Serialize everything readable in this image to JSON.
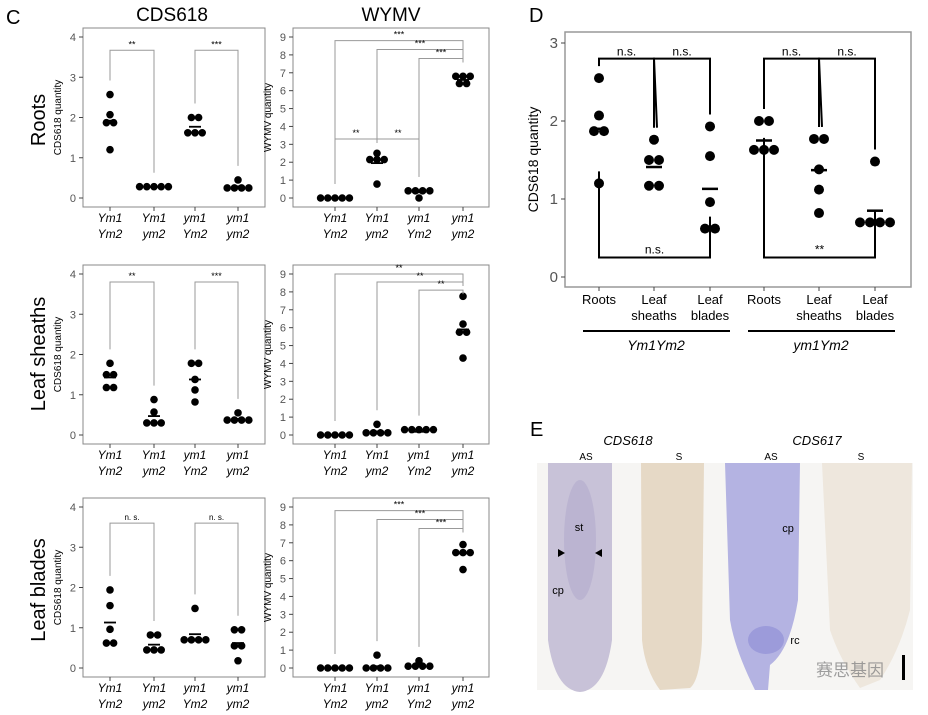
{
  "panel_c": {
    "letter": "C",
    "columns": [
      "CDS618",
      "WYMV"
    ],
    "rows": [
      "Roots",
      "Leaf sheaths",
      "Leaf blades"
    ]
  },
  "panel_d": {
    "letter": "D",
    "groups": [
      "Ym1Ym2",
      "ym1Ym2"
    ]
  },
  "panel_e": {
    "letter": "E",
    "genes": [
      "CDS618",
      "CDS617"
    ],
    "probes": [
      "AS",
      "S",
      "AS",
      "S"
    ],
    "annotations": {
      "st": "st",
      "cp1": "cp",
      "cp2": "cp",
      "rc": "rc"
    },
    "watermark": "赛思基因",
    "colors": {
      "cds618_as": "#c8c2d8",
      "cds618_s": "#e6d9c6",
      "cds617_as": "#b4b3e2",
      "cds617_s": "#eee7dd"
    }
  },
  "chart_data": [
    {
      "type": "scatter",
      "panel": "C",
      "row": "Roots",
      "column": "CDS618",
      "ylabel": "CDS618 quantity",
      "ylim": [
        0,
        4
      ],
      "yticks": [
        0,
        1,
        2,
        3,
        4
      ],
      "categories": [
        "Ym1 Ym2",
        "Ym1 ym2",
        "ym1 Ym2",
        "ym1 ym2"
      ],
      "groups": [
        {
          "points": [
            2.57,
            2.07,
            1.87,
            1.87,
            1.2
          ],
          "mean": 1.92
        },
        {
          "points": [
            0.28,
            0.28,
            0.28,
            0.28,
            0.28
          ],
          "mean": 0.28
        },
        {
          "points": [
            2.0,
            2.0,
            1.62,
            1.62,
            1.62
          ],
          "mean": 1.77
        },
        {
          "points": [
            0.45,
            0.25,
            0.25,
            0.25,
            0.25
          ],
          "mean": 0.29
        }
      ],
      "brackets": [
        {
          "from": 0,
          "to": 1,
          "y": 3.67,
          "label": "**"
        },
        {
          "from": 2,
          "to": 3,
          "y": 3.67,
          "label": "***"
        }
      ]
    },
    {
      "type": "scatter",
      "panel": "C",
      "row": "Roots",
      "column": "WYMV",
      "ylabel": "WYMV quantity",
      "ylim": [
        0,
        9
      ],
      "yticks": [
        0,
        1,
        2,
        3,
        4,
        5,
        6,
        7,
        8,
        9
      ],
      "categories": [
        "Ym1 Ym2",
        "Ym1 ym2",
        "ym1 Ym2",
        "ym1 ym2"
      ],
      "groups": [
        {
          "points": [
            0,
            0,
            0,
            0,
            0
          ],
          "mean": 0
        },
        {
          "points": [
            2.5,
            2.15,
            2.15,
            2.15,
            0.78
          ],
          "mean": 1.95
        },
        {
          "points": [
            0.4,
            0.4,
            0.4,
            0.4,
            0
          ],
          "mean": 0.32
        },
        {
          "points": [
            6.8,
            6.8,
            6.8,
            6.4,
            6.4
          ],
          "mean": 6.6
        }
      ],
      "brackets": [
        {
          "from": 0,
          "to": 3,
          "y": 8.8,
          "label": "***"
        },
        {
          "from": 1,
          "to": 3,
          "y": 8.3,
          "label": "***"
        },
        {
          "from": 2,
          "to": 3,
          "y": 7.8,
          "label": "***"
        },
        {
          "from": 0,
          "to": 1,
          "y": 3.3,
          "label": "**"
        },
        {
          "from": 1,
          "to": 2,
          "y": 3.3,
          "label": "**"
        }
      ]
    },
    {
      "type": "scatter",
      "panel": "C",
      "row": "Leaf sheaths",
      "column": "CDS618",
      "ylabel": "CDS618 quantity",
      "ylim": [
        0,
        4
      ],
      "yticks": [
        0,
        1,
        2,
        3,
        4
      ],
      "categories": [
        "Ym1 Ym2",
        "Ym1 ym2",
        "ym1 Ym2",
        "ym1 ym2"
      ],
      "groups": [
        {
          "points": [
            1.78,
            1.5,
            1.5,
            1.18,
            1.18
          ],
          "mean": 1.43
        },
        {
          "points": [
            0.88,
            0.57,
            0.3,
            0.3,
            0.3
          ],
          "mean": 0.47
        },
        {
          "points": [
            1.78,
            1.78,
            1.38,
            1.12,
            0.82
          ],
          "mean": 1.38
        },
        {
          "points": [
            0.55,
            0.37,
            0.37,
            0.37,
            0.37
          ],
          "mean": 0.4
        }
      ],
      "brackets": [
        {
          "from": 0,
          "to": 1,
          "y": 3.8,
          "label": "**"
        },
        {
          "from": 2,
          "to": 3,
          "y": 3.8,
          "label": "***"
        }
      ]
    },
    {
      "type": "scatter",
      "panel": "C",
      "row": "Leaf sheaths",
      "column": "WYMV",
      "ylabel": "WYMV quantity",
      "ylim": [
        0,
        9
      ],
      "yticks": [
        0,
        1,
        2,
        3,
        4,
        5,
        6,
        7,
        8,
        9
      ],
      "categories": [
        "Ym1 Ym2",
        "Ym1 ym2",
        "ym1 Ym2",
        "ym1 ym2"
      ],
      "groups": [
        {
          "points": [
            0,
            0,
            0,
            0,
            0
          ],
          "mean": 0
        },
        {
          "points": [
            0.6,
            0.12,
            0.12,
            0.12,
            0.12
          ],
          "mean": 0.2
        },
        {
          "points": [
            0.3,
            0.3,
            0.1,
            0.1,
            0.1
          ],
          "mean": 0.18
        },
        {
          "points": [
            7.75,
            6.2,
            5.75,
            5.75,
            4.3
          ],
          "mean": 5.9
        }
      ],
      "brackets": [
        {
          "from": 0,
          "to": 3,
          "y": 9.0,
          "label": "**"
        },
        {
          "from": 1,
          "to": 3,
          "y": 8.55,
          "label": "**"
        },
        {
          "from": 2,
          "to": 3,
          "y": 8.1,
          "label": "**"
        }
      ]
    },
    {
      "type": "scatter",
      "panel": "C",
      "row": "Leaf blades",
      "column": "CDS618",
      "ylabel": "CDS618 quantity",
      "ylim": [
        0,
        4
      ],
      "yticks": [
        0,
        1,
        2,
        3,
        4
      ],
      "categories": [
        "Ym1 Ym2",
        "Ym1 ym2",
        "ym1 Ym2",
        "ym1 ym2"
      ],
      "groups": [
        {
          "points": [
            1.94,
            1.55,
            0.96,
            0.62,
            0.62
          ],
          "mean": 1.13
        },
        {
          "points": [
            0.82,
            0.82,
            0.45,
            0.45,
            0.45
          ],
          "mean": 0.58
        },
        {
          "points": [
            1.48,
            0.7,
            0.7,
            0.7,
            0.7
          ],
          "mean": 0.84
        },
        {
          "points": [
            0.95,
            0.95,
            0.55,
            0.55,
            0.18
          ],
          "mean": 0.62
        }
      ],
      "brackets": [
        {
          "from": 0,
          "to": 1,
          "y": 3.6,
          "label": "n. s."
        },
        {
          "from": 2,
          "to": 3,
          "y": 3.6,
          "label": "n. s."
        }
      ]
    },
    {
      "type": "scatter",
      "panel": "C",
      "row": "Leaf blades",
      "column": "WYMV",
      "ylabel": "WYMV quantity",
      "ylim": [
        0,
        9
      ],
      "yticks": [
        0,
        1,
        2,
        3,
        4,
        5,
        6,
        7,
        8,
        9
      ],
      "categories": [
        "Ym1 Ym2",
        "Ym1 ym2",
        "ym1 Ym2",
        "ym1 ym2"
      ],
      "groups": [
        {
          "points": [
            0,
            0,
            0,
            0,
            0
          ],
          "mean": 0
        },
        {
          "points": [
            0.72,
            0,
            0,
            0,
            0
          ],
          "mean": 0.1
        },
        {
          "points": [
            0.4,
            0.1,
            0.1,
            0.1,
            0.1
          ],
          "mean": 0.15
        },
        {
          "points": [
            6.9,
            6.45,
            6.45,
            6.45,
            5.5
          ],
          "mean": 6.4
        }
      ],
      "brackets": [
        {
          "from": 0,
          "to": 3,
          "y": 8.8,
          "label": "***"
        },
        {
          "from": 1,
          "to": 3,
          "y": 8.3,
          "label": "***"
        },
        {
          "from": 2,
          "to": 3,
          "y": 7.8,
          "label": "***"
        }
      ]
    },
    {
      "type": "scatter",
      "panel": "D",
      "ylabel": "CDS618 quantity",
      "ylim": [
        0,
        3
      ],
      "yticks": [
        0,
        1,
        2,
        3
      ],
      "categories": [
        "Roots",
        "Leaf sheaths",
        "Leaf blades",
        "Roots",
        "Leaf sheaths",
        "Leaf blades"
      ],
      "groups": [
        {
          "points": [
            2.55,
            2.07,
            1.87,
            1.87,
            1.2
          ],
          "mean": 1.9
        },
        {
          "points": [
            1.76,
            1.5,
            1.5,
            1.17,
            1.17
          ],
          "mean": 1.41
        },
        {
          "points": [
            1.93,
            1.55,
            0.96,
            0.62,
            0.62
          ],
          "mean": 1.13
        },
        {
          "points": [
            2.0,
            2.0,
            1.63,
            1.63,
            1.63
          ],
          "mean": 1.75
        },
        {
          "points": [
            1.77,
            1.77,
            1.38,
            1.12,
            0.82
          ],
          "mean": 1.37
        },
        {
          "points": [
            1.48,
            0.7,
            0.7,
            0.7,
            0.7
          ],
          "mean": 0.85
        }
      ],
      "brackets": [
        {
          "from": 0,
          "to": 1,
          "y": 2.8,
          "label": "n.s."
        },
        {
          "from": 1,
          "to": 2,
          "y": 2.8,
          "label": "n.s."
        },
        {
          "from": 3,
          "to": 4,
          "y": 2.8,
          "label": "n.s."
        },
        {
          "from": 4,
          "to": 5,
          "y": 2.8,
          "label": "n.s."
        },
        {
          "from": 0,
          "to": 2,
          "y": 0.25,
          "label": "n.s.",
          "below": true
        },
        {
          "from": 3,
          "to": 5,
          "y": 0.25,
          "label": "**",
          "below": true
        }
      ]
    }
  ]
}
